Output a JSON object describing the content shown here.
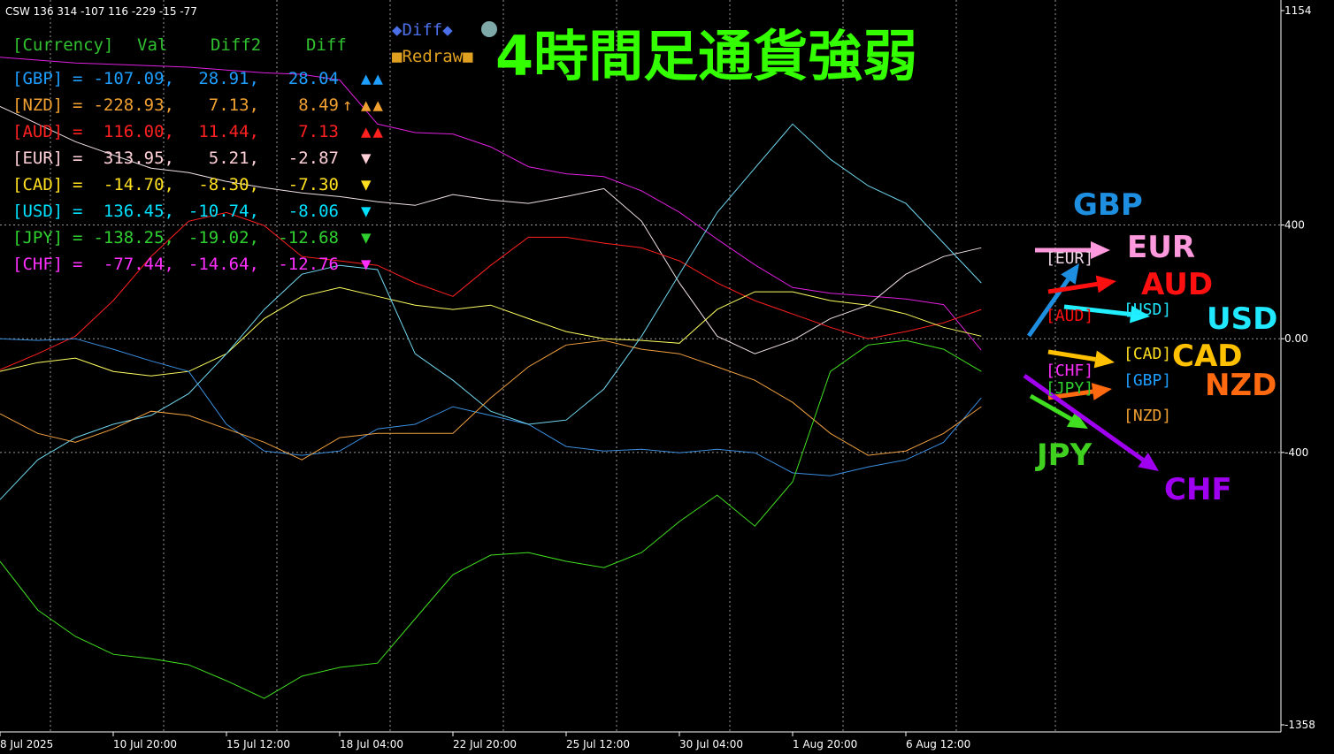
{
  "header": {
    "status": "CSW 136 314 -107 116 -229 -15 -77",
    "title": "4時間足通貨強弱",
    "buttons": [
      "◆Diff◆",
      "■Redraw■"
    ]
  },
  "table": {
    "header": [
      "[Currency]",
      "Val",
      "Diff2",
      "Diff"
    ],
    "rows": [
      {
        "cells": [
          "[GBP]",
          "=",
          "-107.09,",
          "28.91,",
          "28.04"
        ],
        "flags": "▲▲"
      },
      {
        "cells": [
          "[NZD]",
          "=",
          "-228.93,",
          "7.13,",
          "8.49"
        ],
        "arrow": "↑",
        "flags": "▲▲"
      },
      {
        "cells": [
          "[AUD]",
          "=",
          "116.00,",
          "11.44,",
          "7.13"
        ],
        "flags": "▲▲"
      },
      {
        "cells": [
          "[EUR]",
          "=",
          "313.95,",
          "5.21,",
          "-2.87"
        ],
        "flags": "▼"
      },
      {
        "cells": [
          "[CAD]",
          "=",
          "-14.70,",
          "-8.30,",
          "-7.30"
        ],
        "flags": "▼"
      },
      {
        "cells": [
          "[USD]",
          "=",
          "136.45,",
          "-10.74,",
          "-8.06"
        ],
        "flags": "▼"
      },
      {
        "cells": [
          "[JPY]",
          "=",
          "-138.25,",
          "-19.02,",
          "-12.68"
        ],
        "flags": "▼"
      },
      {
        "cells": [
          "[CHF]",
          "=",
          "-77.44,",
          "-14.64,",
          "-12.76"
        ],
        "flags": "▼"
      }
    ]
  },
  "overlay": {
    "labels": [
      "GBP",
      "EUR",
      "AUD",
      "USD",
      "CAD",
      "NZD",
      "JPY",
      "CHF"
    ],
    "tags": [
      "[EUR]",
      "[AUD]",
      "[USD]",
      "[CAD]",
      "[GBP]",
      "[NZD]",
      "[CHF]",
      "[JPY]"
    ]
  },
  "chart_data": {
    "type": "line",
    "categories": [
      "8 Jul 2025",
      null,
      null,
      "10 Jul 20:00",
      null,
      null,
      "15 Jul 12:00",
      null,
      null,
      "18 Jul 04:00",
      null,
      null,
      "22 Jul 20:00",
      null,
      null,
      "25 Jul 12:00",
      null,
      null,
      "30 Jul 04:00",
      null,
      null,
      "1 Aug 20:00",
      null,
      null,
      "6 Aug 12:00",
      null,
      null
    ],
    "ylim": [
      -1358,
      1154
    ],
    "yticks": [
      1154,
      400,
      {
        "value": 0,
        "label": "0.00"
      },
      -400,
      -1358
    ],
    "grid": true,
    "series": [
      {
        "color": "#e020e0",
        "values": [
          990,
          980,
          970,
          965,
          960,
          955,
          945,
          935,
          930,
          910,
          755,
          725,
          720,
          675,
          605,
          580,
          570,
          520,
          445,
          350,
          260,
          180,
          160,
          150,
          140,
          120,
          -40
        ]
      },
      {
        "color": "#f0e0e8",
        "values": [
          817,
          755,
          693,
          646,
          600,
          584,
          553,
          531,
          513,
          500,
          482,
          469,
          507,
          488,
          476,
          500,
          528,
          413,
          196,
          9,
          -53,
          -6,
          71,
          118,
          227,
          289,
          320
        ]
      },
      {
        "color": "#ff2020",
        "values": [
          -109,
          -53,
          9,
          134,
          289,
          413,
          444,
          398,
          289,
          274,
          258,
          196,
          149,
          258,
          357,
          357,
          336,
          320,
          274,
          196,
          134,
          87,
          40,
          0,
          25,
          56,
          103
        ]
      },
      {
        "color": "#ffff60",
        "values": [
          -115,
          -84,
          -68,
          -115,
          -131,
          -115,
          -53,
          71,
          149,
          180,
          149,
          118,
          103,
          118,
          71,
          25,
          0,
          -6,
          -16,
          103,
          165,
          165,
          134,
          118,
          87,
          40,
          9
        ]
      },
      {
        "color": "#3a8fe0",
        "values": [
          0,
          -6,
          0,
          -37,
          -78,
          -115,
          -301,
          -395,
          -410,
          -395,
          -317,
          -301,
          -239,
          -270,
          -301,
          -379,
          -395,
          -389,
          -401,
          -389,
          -401,
          -472,
          -482,
          -451,
          -426,
          -364,
          -208
        ]
      },
      {
        "color": "#70d8f0",
        "values": [
          -566,
          -426,
          -348,
          -301,
          -270,
          -193,
          -53,
          103,
          227,
          258,
          243,
          -53,
          -146,
          -255,
          -301,
          -286,
          -177,
          9,
          227,
          444,
          600,
          755,
          631,
          538,
          476,
          336,
          196
        ]
      },
      {
        "color": "#f0a040",
        "values": [
          -264,
          -333,
          -364,
          -317,
          -255,
          -270,
          -317,
          -364,
          -426,
          -348,
          -333,
          -333,
          -333,
          -208,
          -99,
          -22,
          -6,
          -37,
          -53,
          -99,
          -146,
          -224,
          -333,
          -410,
          -395,
          -333,
          -239
        ]
      },
      {
        "color": "#40e020",
        "values": [
          -783,
          -954,
          -1047,
          -1110,
          -1125,
          -1147,
          -1203,
          -1265,
          -1187,
          -1156,
          -1141,
          -985,
          -830,
          -761,
          -752,
          -783,
          -805,
          -752,
          -643,
          -550,
          -659,
          -503,
          -115,
          -22,
          -6,
          -37,
          -115
        ]
      }
    ]
  }
}
